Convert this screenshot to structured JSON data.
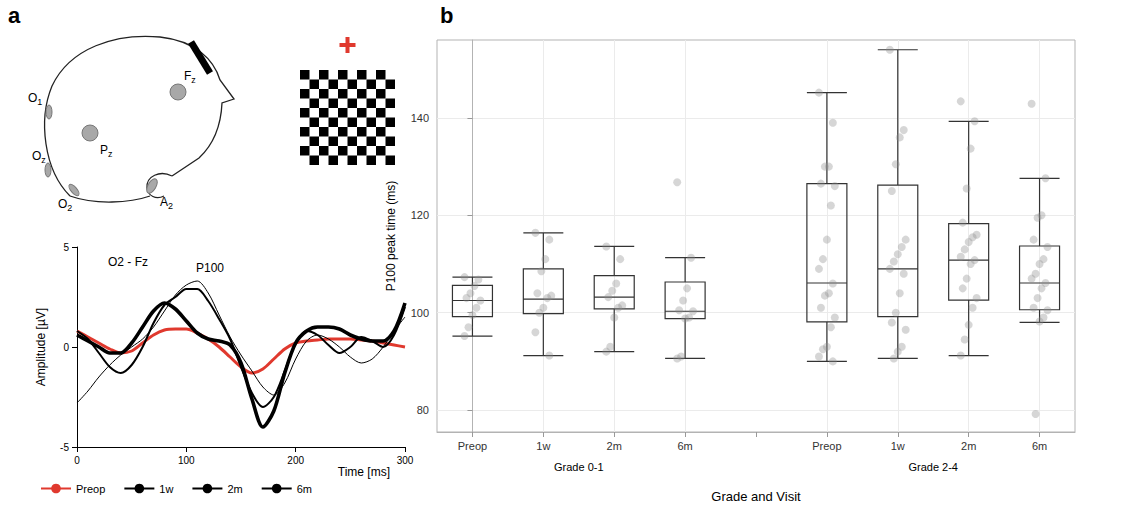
{
  "chart_data": [
    {
      "panel": "a",
      "type": "line",
      "annotations": [
        "O2 - Fz",
        "P100"
      ],
      "x_label": "Time [ms]",
      "y_label": "Amplitude [µV]",
      "x": [
        0,
        10,
        20,
        30,
        40,
        50,
        60,
        70,
        80,
        90,
        100,
        110,
        120,
        130,
        140,
        150,
        160,
        170,
        180,
        190,
        200,
        210,
        220,
        230,
        240,
        250,
        260,
        270,
        280,
        290,
        300
      ],
      "xlim": [
        0,
        300
      ],
      "xticks": [
        0,
        100,
        200,
        300
      ],
      "ylim": [
        -5,
        5
      ],
      "yticks": [
        -5,
        0,
        5
      ],
      "grid": false,
      "legend": "bottom",
      "series": [
        {
          "name": "Preop",
          "color": "#e0392e",
          "line_style": "thick",
          "values": [
            0.8,
            0.5,
            0.2,
            -0.1,
            -0.3,
            -0.2,
            0.2,
            0.6,
            0.85,
            0.9,
            0.9,
            0.7,
            0.4,
            0,
            -0.5,
            -1.0,
            -1.3,
            -1.1,
            -0.6,
            -0.1,
            0.2,
            0.3,
            0.35,
            0.4,
            0.4,
            0.4,
            0.35,
            0.3,
            0.2,
            0.1,
            0
          ]
        },
        {
          "name": "1w",
          "color": "#000000",
          "line_style": "thin",
          "values": [
            -2.8,
            -2.2,
            -1.5,
            -0.9,
            -0.4,
            0,
            0.4,
            1.0,
            1.8,
            2.6,
            3.1,
            3.3,
            2.7,
            1.6,
            0.5,
            -0.4,
            -1.2,
            -2.0,
            -2.4,
            -1.8,
            -0.6,
            0.3,
            0.6,
            0.4,
            0,
            -0.5,
            -0.8,
            -0.6,
            0,
            0.8,
            1.5
          ]
        },
        {
          "name": "2m",
          "color": "#000000",
          "line_style": "medium",
          "values": [
            0.8,
            0.4,
            -0.3,
            -1.0,
            -1.3,
            -0.9,
            0,
            1.2,
            2.1,
            2.5,
            2.9,
            2.9,
            2.3,
            1.4,
            0.4,
            -1.0,
            -2.3,
            -3.0,
            -2.5,
            -1.2,
            0.2,
            0.8,
            0.6,
            0.1,
            -0.3,
            0,
            0.5,
            0.3,
            0,
            0.6,
            2.0
          ]
        },
        {
          "name": "6m",
          "color": "#000000",
          "line_style": "heavy",
          "values": [
            0.6,
            0.3,
            0,
            -0.3,
            -0.3,
            0.2,
            1.0,
            1.8,
            2.2,
            1.9,
            1.3,
            0.7,
            0.4,
            0.3,
            0.1,
            -0.8,
            -2.6,
            -4.0,
            -3.2,
            -1.3,
            0.2,
            0.8,
            1.0,
            1.0,
            0.9,
            0.6,
            0.4,
            0.3,
            0.3,
            0.8,
            2.2
          ]
        }
      ]
    },
    {
      "panel": "b",
      "type": "boxplot",
      "x_label": "Grade and Visit",
      "y_label": "P100 peak time (ms)",
      "categories": [
        "Preop",
        "1w",
        "2m",
        "6m",
        null,
        "Preop",
        "1w",
        "2m",
        "6m"
      ],
      "groups": [
        "Grade 0-1",
        "Grade 2-4"
      ],
      "ylim": [
        75.5,
        156
      ],
      "yticks": [
        80,
        100,
        120,
        140
      ],
      "grid": true,
      "boxes": [
        {
          "min": 95.2,
          "q1": 99.2,
          "median": 102.5,
          "q3": 105.6,
          "max": 107.3
        },
        {
          "min": 91.2,
          "q1": 99.8,
          "median": 102.8,
          "q3": 109,
          "max": 116.4
        },
        {
          "min": 92,
          "q1": 100.8,
          "median": 103.2,
          "q3": 107.6,
          "max": 113.6
        },
        {
          "min": 90.6,
          "q1": 98.8,
          "median": 100.3,
          "q3": 106.3,
          "max": 111.3
        },
        null,
        {
          "min": 90,
          "q1": 98.1,
          "median": 106.1,
          "q3": 126.5,
          "max": 145.2
        },
        {
          "min": 90.6,
          "q1": 99.2,
          "median": 109,
          "q3": 126.2,
          "max": 154
        },
        {
          "min": 91.2,
          "q1": 102.6,
          "median": 110.8,
          "q3": 118.3,
          "max": 139.3
        },
        {
          "min": 98,
          "q1": 100.6,
          "median": 106.1,
          "q3": 113.7,
          "max": 127.6
        }
      ],
      "points": [
        [
          107.3,
          106.8,
          105.5,
          104,
          103,
          102.5,
          101,
          99.5,
          97,
          95.2
        ],
        [
          116.4,
          115,
          111,
          108.5,
          104,
          103.5,
          103,
          101,
          100,
          96,
          91.2
        ],
        [
          113.6,
          111,
          106,
          104.5,
          103.2,
          101.5,
          101,
          99,
          93,
          92
        ],
        [
          126.8,
          111.3,
          105,
          102.5,
          100.5,
          100.3,
          99,
          98.8,
          91,
          90.6
        ],
        null,
        [
          145.2,
          139,
          130,
          130,
          126.5,
          126,
          122,
          115,
          111,
          109,
          106,
          104,
          103.5,
          101,
          99,
          97,
          93,
          92.5,
          91,
          90
        ],
        [
          154,
          137.5,
          136,
          130.5,
          125,
          115,
          113.5,
          112,
          110.5,
          109,
          108,
          104,
          100,
          98,
          96.5,
          93,
          92,
          90.6
        ],
        [
          143.4,
          139.3,
          133.7,
          125.5,
          118.5,
          116,
          115.5,
          114.5,
          113,
          111.5,
          110.8,
          110,
          107,
          105,
          103,
          101,
          97.5,
          94.5,
          91.2
        ],
        [
          142.9,
          127.6,
          120,
          119.5,
          115,
          113.5,
          111,
          110,
          108,
          107,
          106.1,
          105,
          103,
          101,
          100.5,
          99,
          98.2,
          79.2
        ]
      ]
    }
  ],
  "diagram": {
    "electrodes": [
      "O1",
      "Oz",
      "O2",
      "A2",
      "Fz",
      "Pz"
    ]
  }
}
